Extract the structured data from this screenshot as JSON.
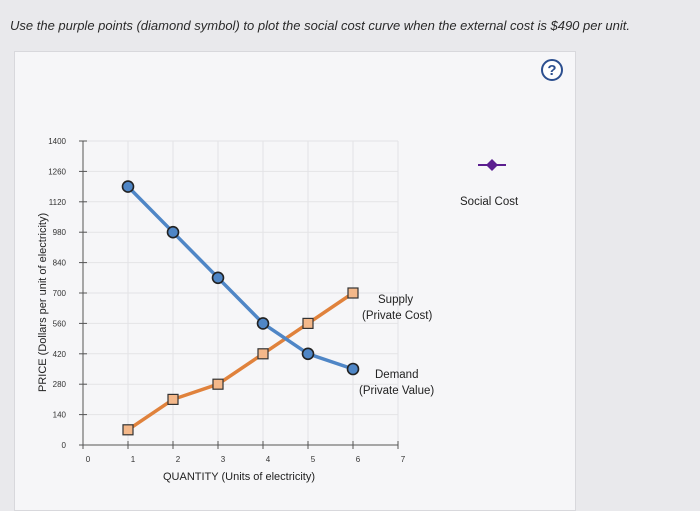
{
  "instruction": "Use the purple points (diamond symbol) to plot the social cost curve when the external cost is $490 per unit.",
  "help_label": "?",
  "legend": {
    "label": "Social Cost",
    "color": "#5b1e8f"
  },
  "colors": {
    "supply": "#e0823c",
    "demand": "#4f86c6",
    "panel": "#f6f6f8"
  },
  "chart_data": {
    "type": "line",
    "ylabel": "PRICE (Dollars per unit of electricity)",
    "xlabel": "QUANTITY (Units of electricity)",
    "x_ticks": [
      "0",
      "1",
      "2",
      "3",
      "4",
      "5",
      "6",
      "7"
    ],
    "y_ticks": [
      "0",
      "140",
      "280",
      "420",
      "560",
      "700",
      "840",
      "980",
      "1120",
      "1260",
      "1400"
    ],
    "xlim": [
      0,
      7
    ],
    "ylim": [
      0,
      1400
    ],
    "series": [
      {
        "name": "Supply",
        "sublabel": "(Private Cost)",
        "marker": "square",
        "x": [
          1,
          2,
          3,
          4,
          5,
          6
        ],
        "y": [
          70,
          210,
          280,
          420,
          560,
          700
        ]
      },
      {
        "name": "Demand",
        "sublabel": "(Private Value)",
        "marker": "circle",
        "x": [
          1,
          2,
          3,
          4,
          5,
          6
        ],
        "y": [
          1190,
          980,
          770,
          560,
          420,
          350
        ]
      }
    ]
  }
}
